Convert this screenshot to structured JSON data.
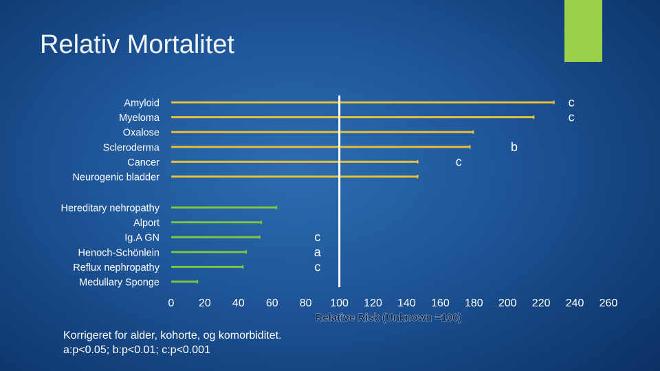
{
  "slide": {
    "title": "Relativ Mortalitet",
    "footnote_line1": "Korrigeret for alder, kohorte, og komorbiditet.",
    "footnote_line2": "a:p<0.05; b:p<0.01; c:p<0.001"
  },
  "colors": {
    "bar": "#e8bf3c",
    "bar_short": "#7cc53d",
    "reference_line": "#ffffff",
    "accent": "#9bd14a",
    "text": "#ffffff"
  },
  "chart_data": {
    "type": "bar",
    "orientation": "horizontal",
    "xlabel": "Relative Risk (Unknown =100)",
    "xlim": [
      0,
      260
    ],
    "xticks": [
      0,
      20,
      40,
      60,
      80,
      100,
      120,
      140,
      160,
      180,
      200,
      220,
      240,
      260
    ],
    "reference_value": 100,
    "groups": [
      {
        "name": "group-1",
        "categories": [
          "Amyloid",
          "Myeloma",
          "Oxalose",
          "Scleroderma",
          "Cancer",
          "Neurogenic bladder"
        ],
        "values": [
          228,
          216,
          180,
          178,
          147,
          147
        ],
        "color_key": "bar"
      },
      {
        "name": "group-2",
        "categories": [
          "Hereditary nehropathy",
          "Alport",
          "Ig.A GN",
          "Henoch-Schönlein",
          "Reflux nephropathy",
          "Medullary Sponge"
        ],
        "values": [
          63,
          54,
          53,
          45,
          43,
          16
        ],
        "color_key": "bar_short"
      }
    ],
    "annotations": [
      {
        "text": "c",
        "x": 238,
        "row": 0
      },
      {
        "text": "c",
        "x": 238,
        "row": 1
      },
      {
        "text": "b",
        "x": 204,
        "row": 3
      },
      {
        "text": "c",
        "x": 171,
        "row": 4
      },
      {
        "text": "c",
        "x": 87,
        "row": 8
      },
      {
        "text": "a",
        "x": 87,
        "row": 9
      },
      {
        "text": "c",
        "x": 87,
        "row": 10
      }
    ]
  }
}
